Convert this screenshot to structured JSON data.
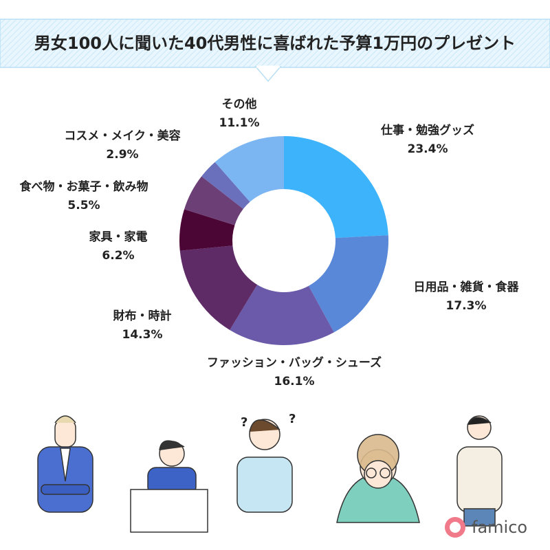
{
  "chart_data": {
    "type": "pie",
    "donut": true,
    "title": "男女100人に聞いた40代男性に喜ばれた予算1万円のプレゼント",
    "categories": [
      "仕事・勉強グッズ",
      "日用品・雑貨・食器",
      "ファッション・バッグ・シューズ",
      "財布・時計",
      "家具・家電",
      "食べ物・お菓子・飲み物",
      "コスメ・メイク・美容",
      "その他"
    ],
    "values": [
      23.4,
      17.3,
      16.1,
      14.3,
      6.2,
      5.5,
      2.9,
      11.1
    ],
    "value_labels": [
      "23.4%",
      "17.3%",
      "16.1%",
      "14.3%",
      "6.2%",
      "5.5%",
      "2.9%",
      "11.1%"
    ],
    "colors": [
      "#3cb3fb",
      "#5a88d8",
      "#6b5aa9",
      "#5e2b67",
      "#4b0636",
      "#6d3f77",
      "#6a70bb",
      "#7cb6f2"
    ]
  },
  "footer": {
    "brand": "famico"
  }
}
